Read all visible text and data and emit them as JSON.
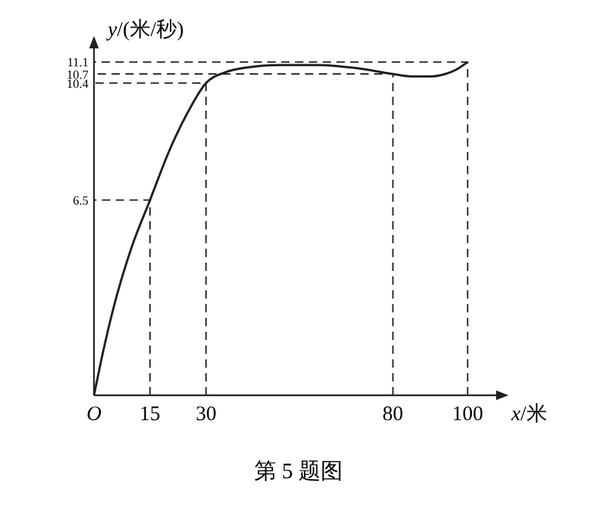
{
  "chart_data": {
    "type": "line",
    "xlabel": "x/米",
    "ylabel": "y/(米/秒)",
    "annotations": [
      "第 5 题图"
    ],
    "xlim": [
      0,
      108
    ],
    "ylim": [
      0,
      11.6
    ],
    "xticks": [
      {
        "value": 0,
        "label": "O"
      },
      15,
      30,
      80,
      100
    ],
    "yticks": [
      6.5,
      10.4,
      10.7,
      11.1
    ],
    "series": [
      {
        "color": "#231f20",
        "x": [
          0,
          2,
          5,
          10,
          15,
          20,
          25,
          30,
          35,
          40,
          50,
          60,
          70,
          80,
          85,
          90,
          94,
          97,
          100
        ],
        "values": [
          0,
          1.2,
          2.8,
          4.9,
          6.5,
          8.1,
          9.4,
          10.4,
          10.75,
          10.9,
          11.0,
          11.0,
          10.9,
          10.7,
          10.62,
          10.62,
          10.7,
          10.85,
          11.1
        ]
      },
      {
        "color": "#231f20",
        "line_style": "dashed",
        "x": [
          15,
          15,
          0
        ],
        "values": [
          0,
          6.5,
          6.5
        ]
      },
      {
        "color": "#231f20",
        "line_style": "dashed",
        "x": [
          30,
          30,
          0
        ],
        "values": [
          0,
          10.4,
          10.4
        ]
      },
      {
        "color": "#231f20",
        "line_style": "dashed",
        "x": [
          80,
          80,
          0
        ],
        "values": [
          0,
          10.7,
          10.7
        ]
      },
      {
        "color": "#231f20",
        "line_style": "dashed",
        "x": [
          100,
          100,
          0
        ],
        "values": [
          0,
          11.1,
          11.1
        ]
      }
    ],
    "marker": "none",
    "line_style": "solid"
  }
}
